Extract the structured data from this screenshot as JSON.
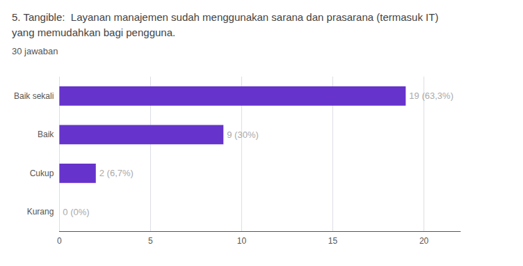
{
  "chart_data": {
    "type": "bar",
    "orientation": "horizontal",
    "title": "5. Tangible:  Layanan manajemen sudah menggunakan sarana dan prasarana (termasuk IT)\nyang memudahkan bagi pengguna.",
    "subtitle": "30 jawaban",
    "categories": [
      "Kurang",
      "Cukup",
      "Baik",
      "Baik sekali"
    ],
    "values": [
      0,
      2,
      9,
      19
    ],
    "value_labels": [
      "0 (0%)",
      "2 (6,7%)",
      "9 (30%)",
      "19 (63,3%)"
    ],
    "data_labels": true,
    "color": "#6633cc",
    "xlim": [
      0,
      22
    ],
    "xticks": [
      0,
      5,
      10,
      15,
      20
    ],
    "grid": true
  }
}
